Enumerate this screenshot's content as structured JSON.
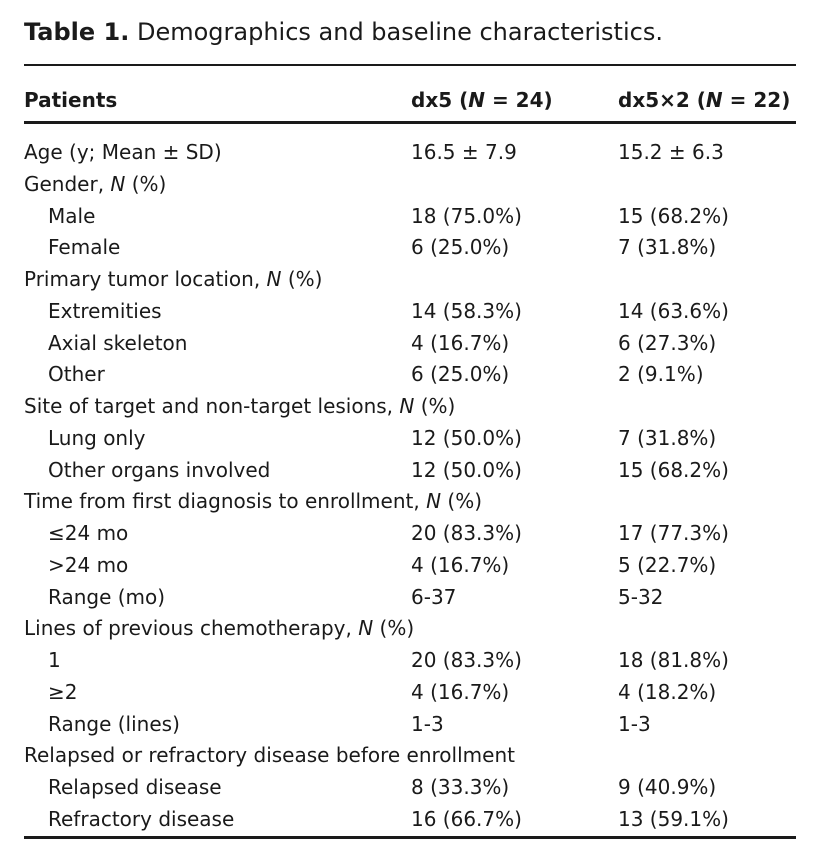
{
  "caption": {
    "label": "Table 1.",
    "text": "Demographics and baseline characteristics."
  },
  "columns": [
    {
      "pre": "Patients",
      "italic": "",
      "post": ""
    },
    {
      "pre": "dx5 (",
      "italic": "N",
      "post": " = 24)"
    },
    {
      "pre": "dx5×2 (",
      "italic": "N",
      "post": " = 22)"
    }
  ],
  "rows": [
    {
      "indent": false,
      "label": "Age (y; Mean ± SD)",
      "suffix": "",
      "v1": "16.5 ± 7.9",
      "v2": "15.2 ± 6.3"
    },
    {
      "indent": false,
      "label": "Gender, ",
      "suffix": " (%)",
      "v1": "",
      "v2": ""
    },
    {
      "indent": true,
      "label": "Male",
      "suffix": "",
      "v1": "18 (75.0%)",
      "v2": "15 (68.2%)"
    },
    {
      "indent": true,
      "label": "Female",
      "suffix": "",
      "v1": "6 (25.0%)",
      "v2": "7 (31.8%)"
    },
    {
      "indent": false,
      "label": "Primary tumor location, ",
      "suffix": " (%)",
      "v1": "",
      "v2": ""
    },
    {
      "indent": true,
      "label": "Extremities",
      "suffix": "",
      "v1": "14 (58.3%)",
      "v2": "14 (63.6%)"
    },
    {
      "indent": true,
      "label": "Axial skeleton",
      "suffix": "",
      "v1": "4 (16.7%)",
      "v2": "6 (27.3%)"
    },
    {
      "indent": true,
      "label": "Other",
      "suffix": "",
      "v1": "6 (25.0%)",
      "v2": "2 (9.1%)"
    },
    {
      "indent": false,
      "label": "Site of target and non-target lesions, ",
      "suffix": " (%)",
      "v1": "",
      "v2": ""
    },
    {
      "indent": true,
      "label": "Lung only",
      "suffix": "",
      "v1": "12 (50.0%)",
      "v2": "7 (31.8%)"
    },
    {
      "indent": true,
      "label": "Other organs involved",
      "suffix": "",
      "v1": "12 (50.0%)",
      "v2": "15 (68.2%)"
    },
    {
      "indent": false,
      "label": "Time from first diagnosis to enrollment, ",
      "suffix": " (%)",
      "v1": "",
      "v2": ""
    },
    {
      "indent": true,
      "label": "≤24 mo",
      "suffix": "",
      "v1": "20 (83.3%)",
      "v2": "17 (77.3%)"
    },
    {
      "indent": true,
      "label": ">24 mo",
      "suffix": "",
      "v1": "4 (16.7%)",
      "v2": "5 (22.7%)"
    },
    {
      "indent": true,
      "label": "Range (mo)",
      "suffix": "",
      "v1": "6-37",
      "v2": "5-32"
    },
    {
      "indent": false,
      "label": "Lines of previous chemotherapy, ",
      "suffix": " (%)",
      "v1": "",
      "v2": ""
    },
    {
      "indent": true,
      "label": "1",
      "suffix": "",
      "v1": "20 (83.3%)",
      "v2": "18 (81.8%)"
    },
    {
      "indent": true,
      "label": "≥2",
      "suffix": "",
      "v1": "4 (16.7%)",
      "v2": "4 (18.2%)"
    },
    {
      "indent": true,
      "label": "Range (lines)",
      "suffix": "",
      "v1": "1-3",
      "v2": "1-3"
    },
    {
      "indent": false,
      "label": "Relapsed or refractory disease before enrollment",
      "suffix": "",
      "v1": "",
      "v2": ""
    },
    {
      "indent": true,
      "label": "Relapsed disease",
      "suffix": "",
      "v1": "8 (33.3%)",
      "v2": "9 (40.9%)"
    },
    {
      "indent": true,
      "label": "Refractory disease",
      "suffix": "",
      "v1": "16 (66.7%)",
      "v2": "13 (59.1%)"
    }
  ],
  "n_symbol": "N"
}
